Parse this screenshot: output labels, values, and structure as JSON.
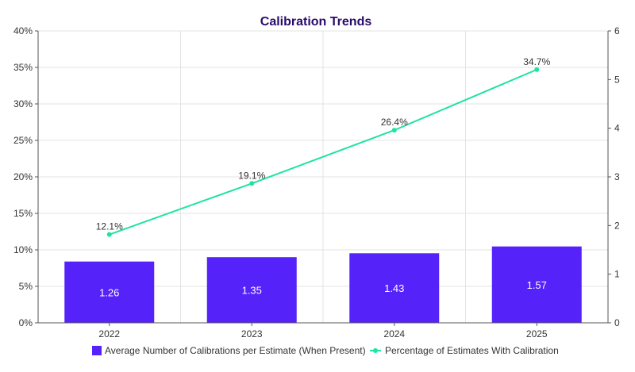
{
  "chart_data": {
    "type": "bar",
    "title": "Calibration Trends",
    "categories": [
      "2022",
      "2023",
      "2024",
      "2025"
    ],
    "y_left": {
      "ylim": [
        0,
        40
      ],
      "ticks": [
        0,
        5,
        10,
        15,
        20,
        25,
        30,
        35,
        40
      ],
      "tick_labels": [
        "0%",
        "5%",
        "10%",
        "15%",
        "20%",
        "25%",
        "30%",
        "35%",
        "40%"
      ]
    },
    "y_right": {
      "ylim": [
        0,
        6
      ],
      "ticks": [
        0,
        1,
        2,
        3,
        4,
        5,
        6
      ],
      "tick_labels": [
        "0",
        "1",
        "2",
        "3",
        "4",
        "5",
        "6"
      ]
    },
    "series": [
      {
        "name": "Average Number of Calibrations per Estimate (When Present)",
        "type": "bar",
        "axis": "right",
        "color": "#5522fa",
        "values": [
          1.26,
          1.35,
          1.43,
          1.57
        ],
        "labels": [
          "1.26",
          "1.35",
          "1.43",
          "1.57"
        ]
      },
      {
        "name": "Percentage of Estimates With Calibration",
        "type": "line",
        "axis": "left",
        "color": "#1ee3a3",
        "values": [
          12.1,
          19.1,
          26.4,
          34.7
        ],
        "labels": [
          "12.1%",
          "19.1%",
          "26.4%",
          "34.7%"
        ]
      }
    ],
    "grid": true,
    "legend_position": "bottom",
    "title_color": "#2a0a6b"
  }
}
